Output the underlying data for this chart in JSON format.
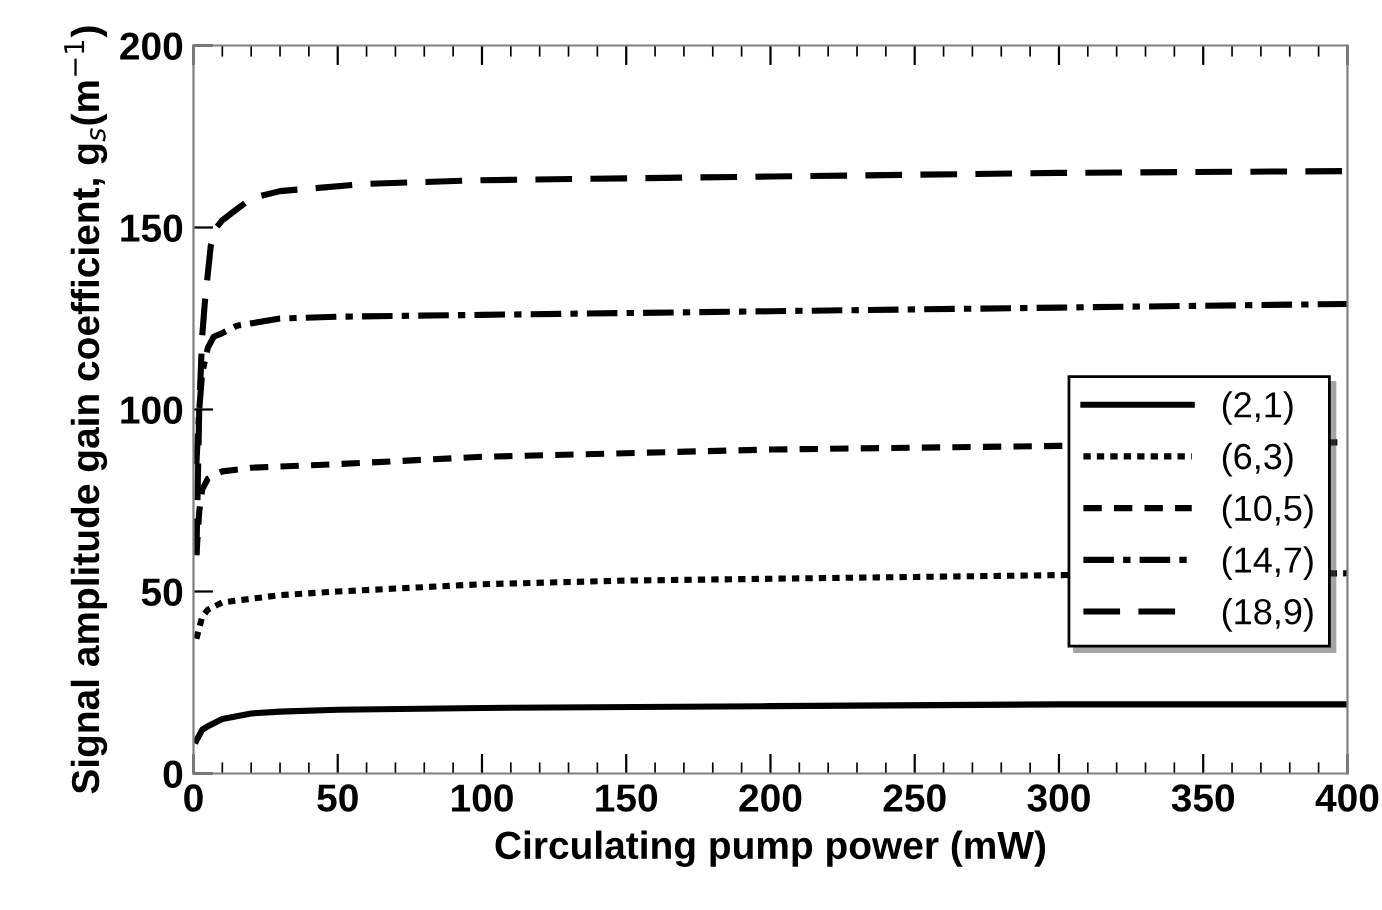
{
  "chart_data": {
    "type": "line",
    "xlabel": "Circulating pump power (mW)",
    "ylabel": "Signal amplitude gain coefficient, g$_{s}$(m$^{−1}$)",
    "xlim": [
      0,
      400
    ],
    "ylim": [
      0,
      200
    ],
    "xticks": [
      0,
      50,
      100,
      150,
      200,
      250,
      300,
      350,
      400
    ],
    "yticks": [
      0,
      50,
      100,
      150,
      200
    ],
    "grid": false,
    "legend": "right",
    "marker": "none",
    "series": [
      {
        "name": "(2,1)",
        "color": "#000000",
        "line_style": "solid",
        "x": [
          1,
          3,
          5,
          10,
          20,
          30,
          50,
          100,
          200,
          300,
          400
        ],
        "values": [
          9,
          12,
          13,
          15,
          16.5,
          17,
          17.5,
          18,
          18.5,
          19,
          19
        ]
      },
      {
        "name": "(6,3)",
        "color": "#000000",
        "line_style": "dotted",
        "x": [
          1,
          3,
          5,
          10,
          20,
          30,
          50,
          100,
          150,
          200,
          250,
          300,
          400
        ],
        "values": [
          37,
          43,
          45,
          47,
          48,
          49,
          50,
          52,
          53,
          53.5,
          54,
          54.5,
          55
        ]
      },
      {
        "name": "(10,5)",
        "color": "#000000",
        "line_style": "dashed",
        "x": [
          1,
          2,
          3,
          5,
          7,
          10,
          20,
          50,
          100,
          200,
          300,
          400
        ],
        "values": [
          60,
          72,
          78,
          81,
          82,
          83,
          84,
          85,
          87,
          89,
          90,
          91
        ]
      },
      {
        "name": "(14,7)",
        "color": "#000000",
        "line_style": "dashdot",
        "x": [
          1,
          2,
          3,
          5,
          7,
          10,
          15,
          30,
          50,
          100,
          200,
          300,
          400
        ],
        "values": [
          85,
          100,
          110,
          117,
          120,
          121,
          123,
          125,
          125.5,
          126,
          127,
          128,
          129
        ]
      },
      {
        "name": "(18,9)",
        "color": "#000000",
        "line_style": "longdash",
        "x": [
          1,
          2,
          3,
          4,
          6,
          8,
          10,
          15,
          20,
          30,
          60,
          100,
          200,
          300,
          400
        ],
        "values": [
          60,
          100,
          120,
          130,
          145,
          150,
          152,
          155,
          158,
          160,
          162,
          163,
          164,
          165,
          165.5
        ]
      }
    ]
  }
}
